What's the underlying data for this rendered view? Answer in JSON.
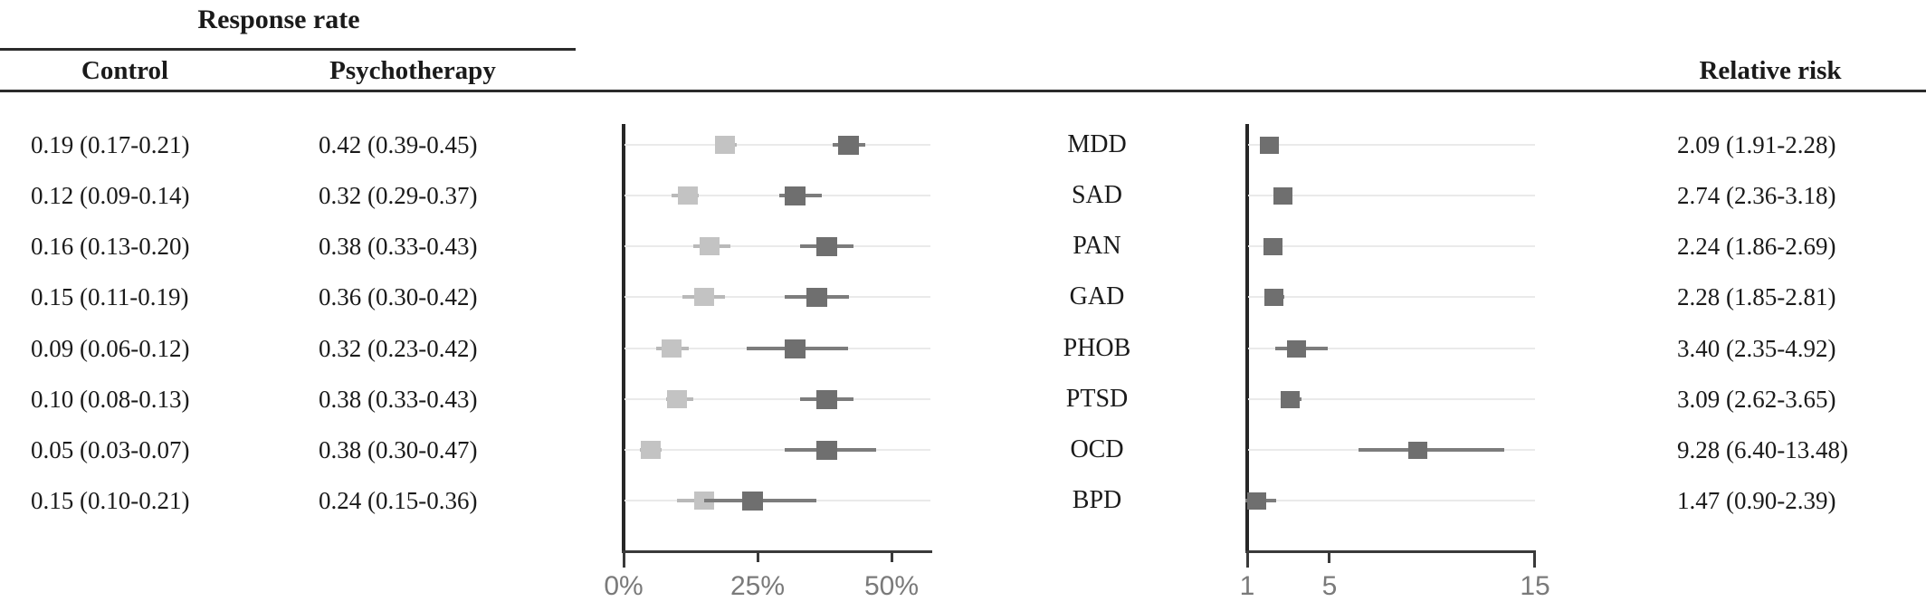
{
  "header": {
    "response_rate_title": "Response rate",
    "control_label": "Control",
    "psychotherapy_label": "Psychotherapy",
    "relative_risk_label": "Relative risk"
  },
  "colors": {
    "text": "#1a1a1a",
    "rule": "#2b2b2b",
    "axis": "#262626",
    "axis_soft": "#3a3a3a",
    "gridline": "#eaeaea",
    "tick_label": "#7a7a7a",
    "control_marker": "#c3c3c3",
    "control_whisker": "#b9b9b9",
    "psychotherapy_marker": "#6f6f6f",
    "psychotherapy_whisker": "#7c7c7c"
  },
  "chart_data": {
    "type": "forest",
    "series": [
      {
        "name": "Control",
        "marker": "light-gray-square"
      },
      {
        "name": "Psychotherapy",
        "marker": "dark-gray-square"
      }
    ],
    "rate_axis": {
      "tick_labels": [
        "0%",
        "25%",
        "50%"
      ],
      "tick_values": [
        0,
        0.25,
        0.5
      ],
      "range": [
        0,
        0.575
      ],
      "scale": "linear"
    },
    "rr_axis": {
      "tick_labels": [
        "1",
        "5",
        "15"
      ],
      "tick_values": [
        1,
        5,
        15
      ],
      "range": [
        1,
        15.05
      ],
      "scale": "linear"
    },
    "rows": [
      {
        "label": "MDD",
        "control_text": "0.19 (0.17-0.21)",
        "psychotherapy_text": "0.42 (0.39-0.45)",
        "rr_text": "2.09 (1.91-2.28)",
        "control": {
          "est": 0.19,
          "lo": 0.17,
          "hi": 0.21
        },
        "psychotherapy": {
          "est": 0.42,
          "lo": 0.39,
          "hi": 0.45
        },
        "rr": {
          "est": 2.09,
          "lo": 1.91,
          "hi": 2.28
        }
      },
      {
        "label": "SAD",
        "control_text": "0.12 (0.09-0.14)",
        "psychotherapy_text": "0.32 (0.29-0.37)",
        "rr_text": "2.74 (2.36-3.18)",
        "control": {
          "est": 0.12,
          "lo": 0.09,
          "hi": 0.14
        },
        "psychotherapy": {
          "est": 0.32,
          "lo": 0.29,
          "hi": 0.37
        },
        "rr": {
          "est": 2.74,
          "lo": 2.36,
          "hi": 3.18
        }
      },
      {
        "label": "PAN",
        "control_text": "0.16 (0.13-0.20)",
        "psychotherapy_text": "0.38 (0.33-0.43)",
        "rr_text": "2.24 (1.86-2.69)",
        "control": {
          "est": 0.16,
          "lo": 0.13,
          "hi": 0.2
        },
        "psychotherapy": {
          "est": 0.38,
          "lo": 0.33,
          "hi": 0.43
        },
        "rr": {
          "est": 2.24,
          "lo": 1.86,
          "hi": 2.69
        }
      },
      {
        "label": "GAD",
        "control_text": "0.15 (0.11-0.19)",
        "psychotherapy_text": "0.36 (0.30-0.42)",
        "rr_text": "2.28 (1.85-2.81)",
        "control": {
          "est": 0.15,
          "lo": 0.11,
          "hi": 0.19
        },
        "psychotherapy": {
          "est": 0.36,
          "lo": 0.3,
          "hi": 0.42
        },
        "rr": {
          "est": 2.28,
          "lo": 1.85,
          "hi": 2.81
        }
      },
      {
        "label": "PHOB",
        "control_text": "0.09 (0.06-0.12)",
        "psychotherapy_text": "0.32 (0.23-0.42)",
        "rr_text": "3.40 (2.35-4.92)",
        "control": {
          "est": 0.09,
          "lo": 0.06,
          "hi": 0.12
        },
        "psychotherapy": {
          "est": 0.32,
          "lo": 0.23,
          "hi": 0.42
        },
        "rr": {
          "est": 3.4,
          "lo": 2.35,
          "hi": 4.92
        }
      },
      {
        "label": "PTSD",
        "control_text": "0.10 (0.08-0.13)",
        "psychotherapy_text": "0.38 (0.33-0.43)",
        "rr_text": "3.09 (2.62-3.65)",
        "control": {
          "est": 0.1,
          "lo": 0.08,
          "hi": 0.13
        },
        "psychotherapy": {
          "est": 0.38,
          "lo": 0.33,
          "hi": 0.43
        },
        "rr": {
          "est": 3.09,
          "lo": 2.62,
          "hi": 3.65
        }
      },
      {
        "label": "OCD",
        "control_text": "0.05 (0.03-0.07)",
        "psychotherapy_text": "0.38 (0.30-0.47)",
        "rr_text": "9.28 (6.40-13.48)",
        "control": {
          "est": 0.05,
          "lo": 0.03,
          "hi": 0.07
        },
        "psychotherapy": {
          "est": 0.38,
          "lo": 0.3,
          "hi": 0.47
        },
        "rr": {
          "est": 9.28,
          "lo": 6.4,
          "hi": 13.48
        }
      },
      {
        "label": "BPD",
        "control_text": "0.15 (0.10-0.21)",
        "psychotherapy_text": "0.24 (0.15-0.36)",
        "rr_text": "1.47 (0.90-2.39)",
        "control": {
          "est": 0.15,
          "lo": 0.1,
          "hi": 0.21
        },
        "psychotherapy": {
          "est": 0.24,
          "lo": 0.15,
          "hi": 0.36
        },
        "rr": {
          "est": 1.47,
          "lo": 0.9,
          "hi": 2.39
        }
      }
    ]
  }
}
